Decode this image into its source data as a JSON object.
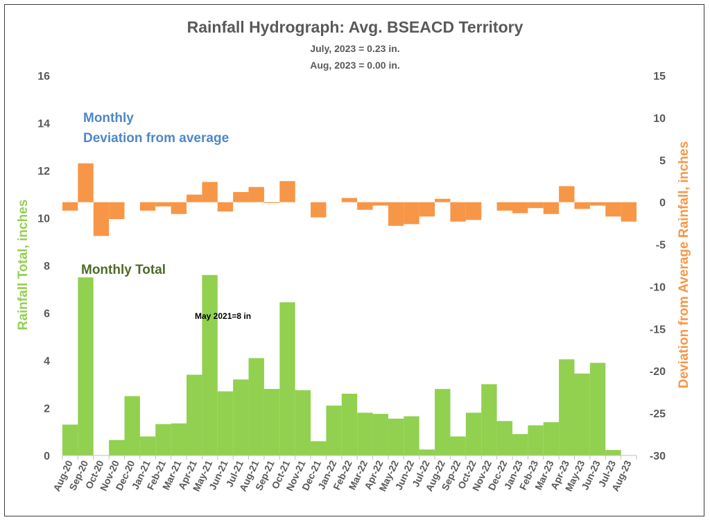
{
  "chart_data": {
    "type": "bar",
    "title": "Rainfall Hydrograph: Avg. BSEACD Territory",
    "subtitle_lines": [
      "July, 2023 = 0.23 in.",
      "Aug, 2023 = 0.00 in."
    ],
    "ylabel": "Rainfall Total, inches",
    "y2label": "Deviation from Average Rainfall, inches",
    "ylim": [
      0,
      16
    ],
    "y2lim": [
      -30,
      15
    ],
    "yticks": [
      "0",
      "2",
      "4",
      "6",
      "8",
      "10",
      "12",
      "14",
      "16"
    ],
    "y2ticks": [
      "-30",
      "-25",
      "-20",
      "-15",
      "-10",
      "-5",
      "0",
      "5",
      "10",
      "15"
    ],
    "grid": false,
    "categories": [
      "Aug-20",
      "Sep-20",
      "Oct-20",
      "Nov-20",
      "Dec-20",
      "Jan-21",
      "Feb-21",
      "Mar-21",
      "Apr-21",
      "May-21",
      "Jun-21",
      "Jul-21",
      "Aug-21",
      "Sep-21",
      "Oct-21",
      "Nov-21",
      "Dec-21",
      "Jan-22",
      "Feb-22",
      "Mar-22",
      "Apr-22",
      "May-22",
      "Jun-22",
      "Jul-22",
      "Aug-22",
      "Sep-22",
      "Oct-22",
      "Nov-22",
      "Dec-22",
      "Jan-23",
      "Feb-23",
      "Mar-23",
      "Apr-23",
      "May-23",
      "Jun-23",
      "Jul-23",
      "Aug-23"
    ],
    "series": [
      {
        "name": "Monthly Total",
        "axis": "left",
        "color": "#92d050",
        "values": [
          1.3,
          7.5,
          0,
          0.65,
          2.5,
          0.8,
          1.32,
          1.35,
          3.4,
          7.6,
          2.7,
          3.2,
          4.1,
          2.8,
          6.45,
          2.75,
          0.6,
          2.1,
          2.6,
          1.8,
          1.75,
          1.55,
          1.65,
          0.25,
          2.8,
          0.8,
          1.8,
          3.0,
          1.45,
          0.9,
          1.27,
          1.4,
          4.05,
          3.45,
          3.9,
          0.23,
          0
        ]
      },
      {
        "name": "Deviation from average",
        "axis": "right",
        "color": "#f79646",
        "values": [
          -1.0,
          4.6,
          -4.0,
          -2.0,
          0,
          -1.0,
          -0.5,
          -1.4,
          0.9,
          2.4,
          -1.1,
          1.2,
          1.8,
          -0.1,
          2.5,
          0,
          -1.8,
          0,
          0.5,
          -0.9,
          -0.4,
          -2.8,
          -2.6,
          -1.7,
          0.4,
          -2.3,
          -2.1,
          0,
          -1.0,
          -1.3,
          -0.7,
          -1.4,
          1.9,
          -0.8,
          -0.4,
          -1.7,
          -2.3
        ]
      }
    ],
    "annotations": [
      "Monthly",
      "Deviation from average",
      "Monthly Total",
      "May 2021=8 in"
    ]
  },
  "colors": {
    "axis_text": "#595959",
    "left_axis_label": "#92d050",
    "right_axis_label": "#f79646",
    "deviation_annotation": "#4e87c8",
    "total_annotation": "#4e6b29"
  }
}
